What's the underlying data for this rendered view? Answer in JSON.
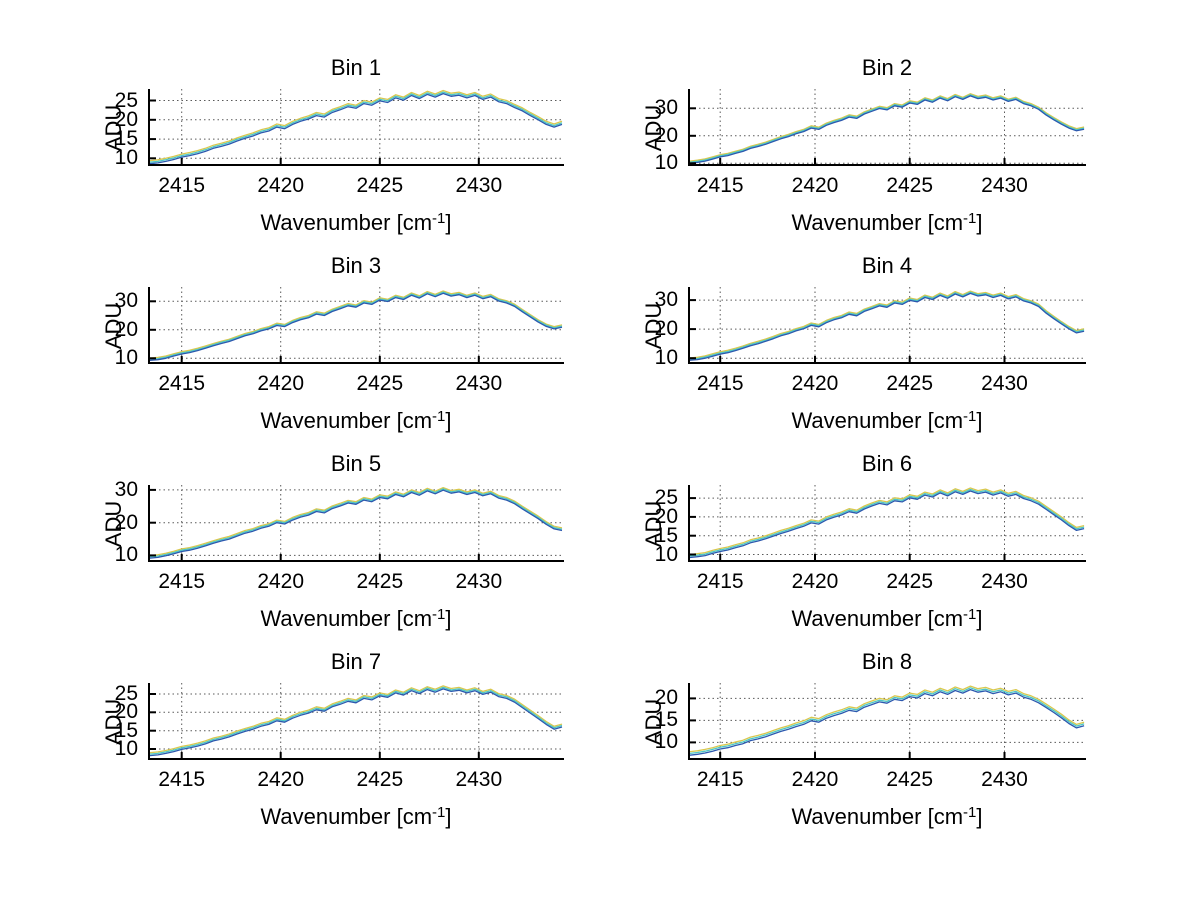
{
  "figure": {
    "colors": {
      "background": "#ffffff",
      "axis": "#000000",
      "grid": "#5a5a5a"
    },
    "labels": {
      "ylabel": "ADU",
      "xlabel_base": "Wavenumber [cm",
      "xlabel_sup": "-1",
      "xlabel_close": "]"
    },
    "series": [
      {
        "name": "trace-yellow",
        "color": "#d9c84e",
        "offset": 0.8
      },
      {
        "name": "trace-cyan",
        "color": "#4cc6c6",
        "offset": 0.4
      },
      {
        "name": "trace-blue",
        "color": "#2c58ae",
        "offset": 0.0
      }
    ]
  },
  "chart_data": [
    {
      "type": "line",
      "title": "Bin 1",
      "xlabel": "Wavenumber [cm⁻¹]",
      "ylabel": "ADU",
      "xlim": [
        2413.3,
        2434.3
      ],
      "ylim": [
        8,
        28
      ],
      "xticks": [
        2415,
        2420,
        2425,
        2430
      ],
      "yticks": [
        25,
        20,
        15,
        10
      ],
      "x_start": 2413.4,
      "x_step": 0.4,
      "grid": true,
      "y": [
        8.6,
        8.8,
        9.2,
        9.7,
        10.3,
        10.7,
        11.2,
        11.8,
        12.6,
        13.1,
        13.7,
        14.5,
        15.2,
        15.8,
        16.6,
        17.1,
        18.1,
        17.7,
        18.8,
        19.6,
        20.2,
        21.1,
        20.7,
        21.9,
        22.6,
        23.4,
        23.0,
        24.2,
        23.8,
        24.9,
        24.5,
        25.7,
        25.1,
        26.3,
        25.5,
        26.6,
        25.9,
        26.8,
        26.1,
        26.4,
        25.7,
        26.3,
        25.3,
        25.9,
        24.7,
        24.2,
        23.2,
        22.3,
        21.1,
        20.0,
        18.8,
        18.1,
        18.8
      ]
    },
    {
      "type": "line",
      "title": "Bin 2",
      "xlabel": "Wavenumber [cm⁻¹]",
      "ylabel": "ADU",
      "xlim": [
        2413.3,
        2434.3
      ],
      "ylim": [
        9,
        37
      ],
      "xticks": [
        2415,
        2420,
        2425,
        2430
      ],
      "yticks": [
        30,
        20,
        10
      ],
      "x_start": 2413.4,
      "x_step": 0.4,
      "grid": true,
      "y": [
        10.0,
        10.3,
        10.8,
        11.5,
        12.3,
        12.8,
        13.6,
        14.3,
        15.4,
        16.1,
        16.9,
        17.9,
        18.9,
        19.7,
        20.7,
        21.5,
        22.8,
        22.3,
        23.8,
        24.8,
        25.6,
        26.8,
        26.3,
        27.9,
        28.9,
        29.9,
        29.4,
        30.9,
        30.4,
        31.9,
        31.4,
        33.0,
        32.2,
        33.7,
        32.7,
        34.2,
        33.2,
        34.5,
        33.5,
        34.0,
        33.0,
        33.7,
        32.5,
        33.2,
        31.7,
        30.9,
        29.6,
        27.5,
        25.8,
        24.2,
        22.8,
        21.8,
        22.4
      ]
    },
    {
      "type": "line",
      "title": "Bin 3",
      "xlabel": "Wavenumber [cm⁻¹]",
      "ylabel": "ADU",
      "xlim": [
        2413.3,
        2434.3
      ],
      "ylim": [
        8,
        35
      ],
      "xticks": [
        2415,
        2420,
        2425,
        2430
      ],
      "yticks": [
        30,
        20,
        10
      ],
      "x_start": 2413.4,
      "x_step": 0.4,
      "grid": true,
      "y": [
        9.3,
        9.5,
        10.0,
        10.8,
        11.5,
        12.0,
        12.7,
        13.5,
        14.4,
        15.2,
        15.9,
        16.9,
        17.9,
        18.6,
        19.6,
        20.3,
        21.5,
        21.1,
        22.5,
        23.5,
        24.2,
        25.5,
        25.0,
        26.4,
        27.4,
        28.4,
        27.9,
        29.4,
        28.9,
        30.4,
        29.9,
        31.3,
        30.6,
        32.1,
        31.1,
        32.6,
        31.6,
        32.8,
        31.8,
        32.3,
        31.3,
        32.1,
        30.9,
        31.6,
        30.1,
        29.4,
        28.2,
        26.3,
        24.5,
        22.7,
        21.2,
        20.3,
        20.9
      ]
    },
    {
      "type": "line",
      "title": "Bin 4",
      "xlabel": "Wavenumber [cm⁻¹]",
      "ylabel": "ADU",
      "xlim": [
        2413.3,
        2434.3
      ],
      "ylim": [
        8,
        34.5
      ],
      "xticks": [
        2415,
        2420,
        2425,
        2430
      ],
      "yticks": [
        30,
        20,
        10
      ],
      "x_start": 2413.4,
      "x_step": 0.4,
      "grid": true,
      "y": [
        9.3,
        9.5,
        10.0,
        10.7,
        11.4,
        11.9,
        12.6,
        13.4,
        14.3,
        15.0,
        15.8,
        16.7,
        17.7,
        18.4,
        19.4,
        20.1,
        21.3,
        20.8,
        22.2,
        23.2,
        23.9,
        25.1,
        24.6,
        26.1,
        27.0,
        28.0,
        27.5,
        29.0,
        28.5,
        29.9,
        29.4,
        30.9,
        30.2,
        31.6,
        30.6,
        32.1,
        31.1,
        32.3,
        31.4,
        31.8,
        30.9,
        31.6,
        30.4,
        31.1,
        29.7,
        29.0,
        27.8,
        25.5,
        23.6,
        21.8,
        20.1,
        18.7,
        19.3
      ]
    },
    {
      "type": "line",
      "title": "Bin 5",
      "xlabel": "Wavenumber [cm⁻¹]",
      "ylabel": "ADU",
      "xlim": [
        2413.3,
        2434.3
      ],
      "ylim": [
        8,
        31.5
      ],
      "xticks": [
        2415,
        2420,
        2425,
        2430
      ],
      "yticks": [
        30,
        20,
        10
      ],
      "x_start": 2413.4,
      "x_step": 0.4,
      "grid": true,
      "y": [
        9.2,
        9.4,
        9.9,
        10.5,
        11.2,
        11.6,
        12.2,
        12.9,
        13.7,
        14.4,
        15.0,
        15.9,
        16.8,
        17.4,
        18.3,
        18.9,
        20.0,
        19.6,
        20.8,
        21.7,
        22.3,
        23.4,
        23.0,
        24.3,
        25.1,
        26.0,
        25.6,
        26.9,
        26.4,
        27.7,
        27.3,
        28.6,
        27.9,
        29.2,
        28.4,
        29.7,
        28.8,
        29.9,
        29.0,
        29.4,
        28.6,
        29.2,
        28.2,
        28.8,
        27.5,
        26.9,
        25.8,
        24.2,
        22.7,
        21.2,
        19.5,
        18.1,
        17.6
      ]
    },
    {
      "type": "line",
      "title": "Bin 6",
      "xlabel": "Wavenumber [cm⁻¹]",
      "ylabel": "ADU",
      "xlim": [
        2413.3,
        2434.3
      ],
      "ylim": [
        8,
        28.5
      ],
      "xticks": [
        2415,
        2420,
        2425,
        2430
      ],
      "yticks": [
        25,
        20,
        15,
        10
      ],
      "x_start": 2413.4,
      "x_step": 0.4,
      "grid": true,
      "y": [
        9.2,
        9.4,
        9.7,
        10.3,
        10.8,
        11.2,
        11.8,
        12.3,
        13.1,
        13.6,
        14.2,
        14.9,
        15.6,
        16.2,
        16.9,
        17.5,
        18.4,
        18.1,
        19.2,
        19.9,
        20.5,
        21.4,
        21.0,
        22.1,
        22.9,
        23.6,
        23.2,
        24.3,
        24.0,
        25.1,
        24.7,
        25.8,
        25.3,
        26.4,
        25.6,
        26.7,
        26.0,
        26.9,
        26.2,
        26.6,
        25.8,
        26.4,
        25.5,
        26.0,
        24.9,
        24.3,
        23.4,
        22.0,
        20.6,
        19.2,
        17.7,
        16.4,
        16.9
      ]
    },
    {
      "type": "line",
      "title": "Bin 7",
      "xlabel": "Wavenumber [cm⁻¹]",
      "ylabel": "ADU",
      "xlim": [
        2413.3,
        2434.3
      ],
      "ylim": [
        7,
        28
      ],
      "xticks": [
        2415,
        2420,
        2425,
        2430
      ],
      "yticks": [
        25,
        20,
        15,
        10
      ],
      "x_start": 2413.4,
      "x_step": 0.4,
      "grid": true,
      "y": [
        8.2,
        8.4,
        8.8,
        9.3,
        9.9,
        10.3,
        10.8,
        11.4,
        12.2,
        12.7,
        13.3,
        14.1,
        14.8,
        15.4,
        16.2,
        16.7,
        17.7,
        17.3,
        18.4,
        19.2,
        19.8,
        20.7,
        20.3,
        21.5,
        22.2,
        23.0,
        22.6,
        23.8,
        23.4,
        24.5,
        24.1,
        25.3,
        24.7,
        25.9,
        25.1,
        26.2,
        25.5,
        26.4,
        25.7,
        26.0,
        25.3,
        25.9,
        24.9,
        25.5,
        24.3,
        23.8,
        22.8,
        21.3,
        19.8,
        18.3,
        16.7,
        15.4,
        16.0
      ]
    },
    {
      "type": "line",
      "title": "Bin 8",
      "xlabel": "Wavenumber [cm⁻¹]",
      "ylabel": "ADU",
      "xlim": [
        2413.3,
        2434.3
      ],
      "ylim": [
        6,
        23.5
      ],
      "xticks": [
        2415,
        2420,
        2425,
        2430
      ],
      "yticks": [
        20,
        15,
        10
      ],
      "x_start": 2413.4,
      "x_step": 0.4,
      "grid": true,
      "y": [
        7.1,
        7.3,
        7.6,
        8.0,
        8.5,
        8.8,
        9.3,
        9.7,
        10.4,
        10.8,
        11.3,
        11.9,
        12.5,
        13.0,
        13.6,
        14.1,
        14.9,
        14.6,
        15.5,
        16.1,
        16.6,
        17.3,
        17.0,
        18.0,
        18.6,
        19.2,
        18.9,
        19.8,
        19.5,
        20.4,
        20.1,
        21.1,
        20.6,
        21.5,
        20.9,
        21.8,
        21.2,
        22.0,
        21.4,
        21.7,
        21.1,
        21.5,
        20.8,
        21.2,
        20.3,
        19.8,
        19.0,
        17.9,
        16.8,
        15.6,
        14.3,
        13.3,
        13.8
      ]
    }
  ]
}
